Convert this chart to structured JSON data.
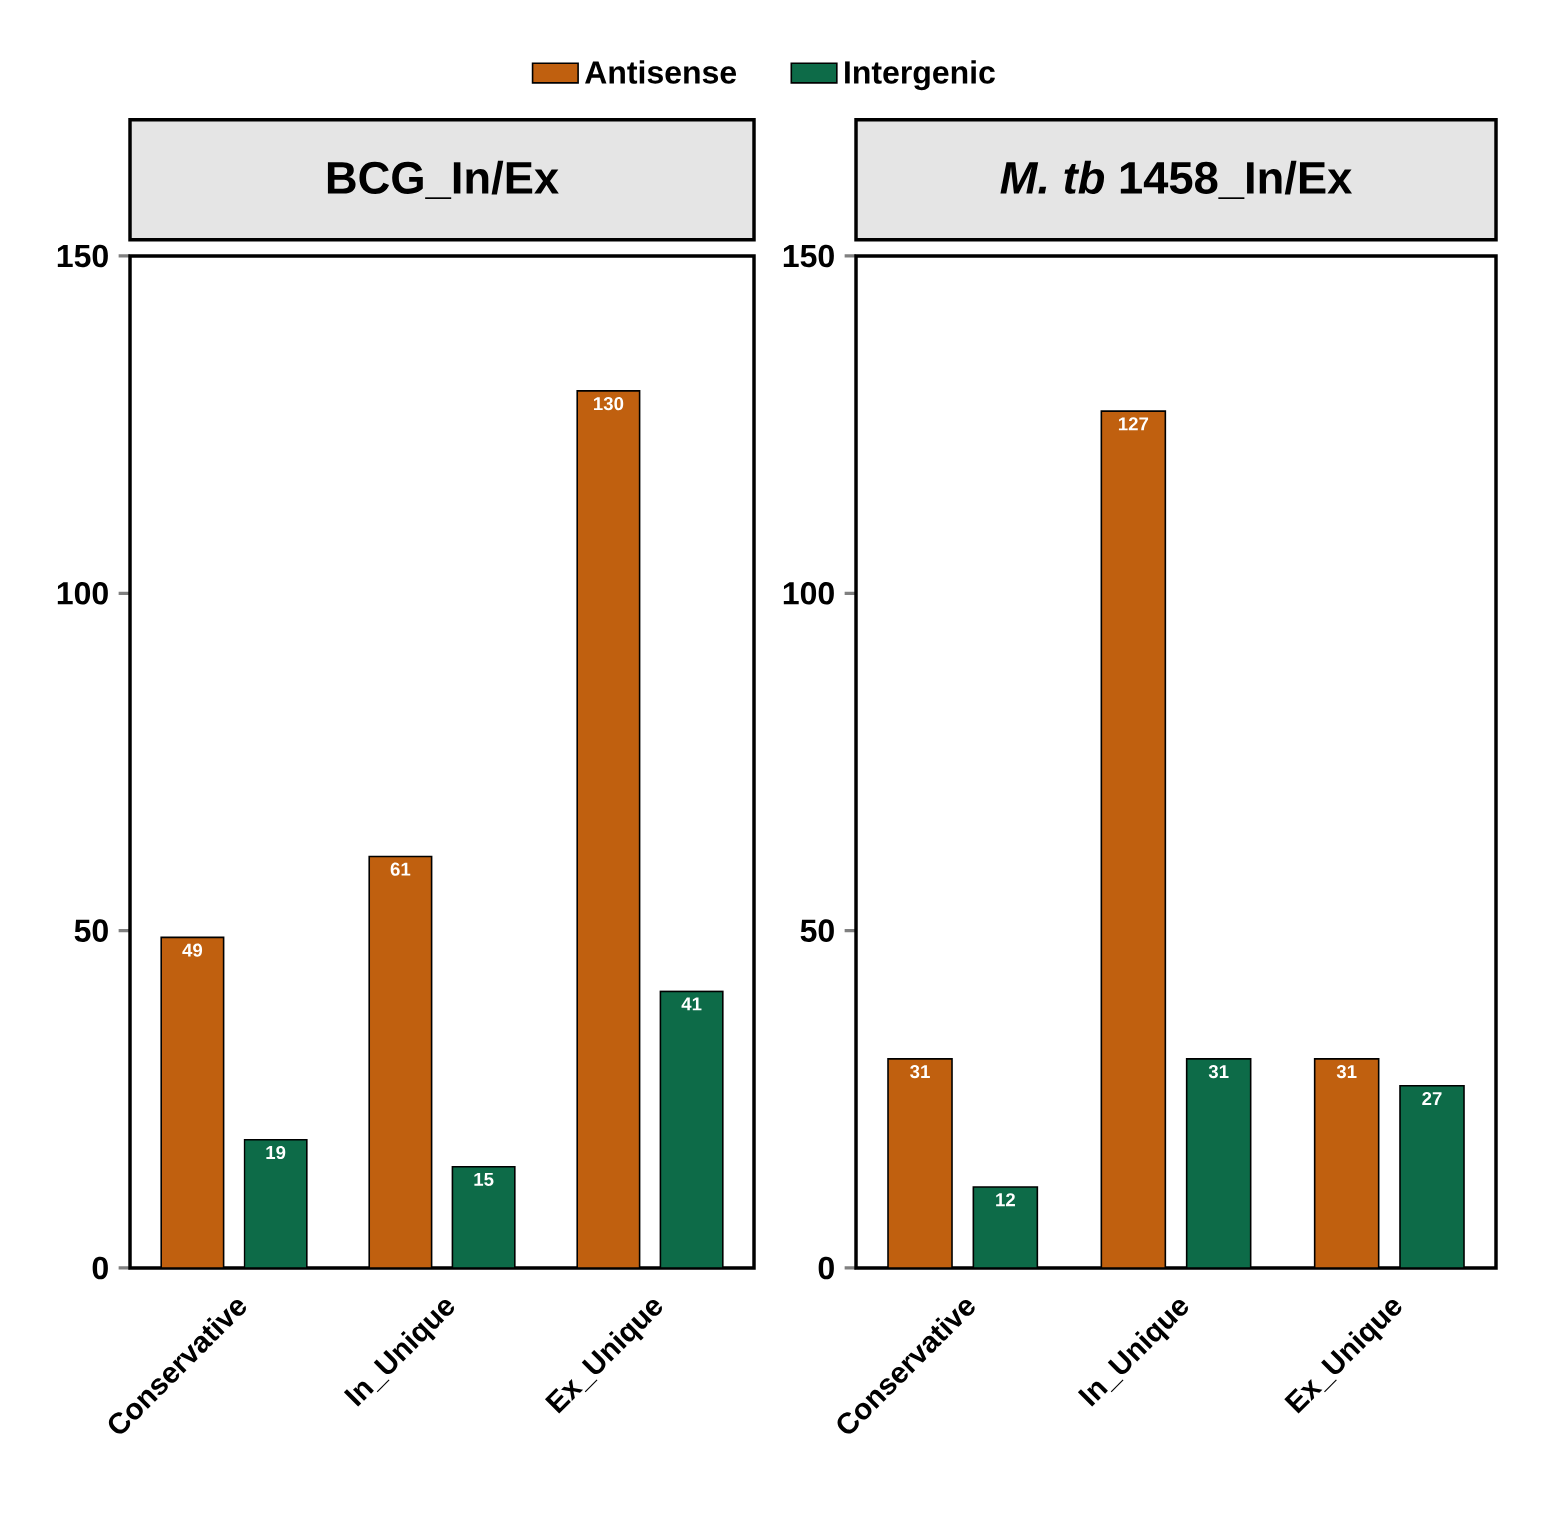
{
  "chart_data": [
    {
      "type": "bar",
      "title": "BCG_In/Ex",
      "categories": [
        "Conservative",
        "In_Unique",
        "Ex_Unique"
      ],
      "series": [
        {
          "name": "Antisense",
          "color": "#c0600f",
          "values": [
            49,
            61,
            130
          ]
        },
        {
          "name": "Intergenic",
          "color": "#0d6b48",
          "values": [
            19,
            15,
            41
          ]
        }
      ],
      "ylim": [
        0,
        150
      ],
      "yticks": [
        0,
        50,
        100,
        150
      ],
      "data_labels": true,
      "legend": "top"
    },
    {
      "type": "bar",
      "title": "*M. tb* 1458_In/Ex",
      "categories": [
        "Conservative",
        "In_Unique",
        "Ex_Unique"
      ],
      "series": [
        {
          "color": "#c0600f",
          "values": [
            31,
            127,
            31
          ]
        },
        {
          "color": "#0d6b48",
          "values": [
            12,
            31,
            27
          ]
        }
      ],
      "ylim": [
        0,
        150
      ],
      "yticks": [
        0,
        50,
        100,
        150
      ],
      "data_labels": true
    }
  ]
}
